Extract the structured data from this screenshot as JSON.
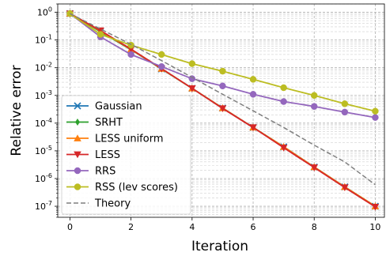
{
  "chart_data": {
    "type": "line",
    "xlabel": "Iteration",
    "ylabel": "Relative error",
    "xlim": [
      -0.4,
      10.3
    ],
    "ylim": [
      4e-08,
      2
    ],
    "yscale": "log",
    "grid": true,
    "legend_position": "bottom-left",
    "x_ticks": [
      0,
      2,
      4,
      6,
      8,
      10
    ],
    "y_ticks": [
      {
        "exp": 0,
        "label": "10",
        "sup": "0"
      },
      {
        "exp": -1,
        "label": "10",
        "sup": "-1"
      },
      {
        "exp": -2,
        "label": "10",
        "sup": "-2"
      },
      {
        "exp": -3,
        "label": "10",
        "sup": "-3"
      },
      {
        "exp": -4,
        "label": "10",
        "sup": "-4"
      },
      {
        "exp": -5,
        "label": "10",
        "sup": "-5"
      },
      {
        "exp": -6,
        "label": "10",
        "sup": "-6"
      },
      {
        "exp": -7,
        "label": "10",
        "sup": "-7"
      }
    ],
    "x": [
      0,
      1,
      2,
      3,
      4,
      5,
      6,
      7,
      8,
      9,
      10
    ],
    "series": [
      {
        "name": "Gaussian",
        "color": "#1f77b4",
        "marker": "x",
        "dashed": false,
        "values": [
          0.9,
          0.2,
          0.045,
          0.009,
          0.0018,
          0.00035,
          7e-05,
          1.4e-05,
          2.6e-06,
          5e-07,
          1e-07
        ]
      },
      {
        "name": "SRHT",
        "color": "#2ca02c",
        "marker": "diamond",
        "dashed": false,
        "values": [
          0.9,
          0.2,
          0.045,
          0.009,
          0.0018,
          0.00035,
          7e-05,
          1.4e-05,
          2.6e-06,
          5e-07,
          1e-07
        ]
      },
      {
        "name": "LESS uniform",
        "color": "#ff7f0e",
        "marker": "triangle-up",
        "dashed": false,
        "values": [
          0.9,
          0.21,
          0.046,
          0.0092,
          0.0018,
          0.00035,
          7e-05,
          1.4e-05,
          2.6e-06,
          5e-07,
          1e-07
        ]
      },
      {
        "name": "LESS",
        "color": "#d62728",
        "marker": "triangle-down",
        "dashed": false,
        "values": [
          0.9,
          0.22,
          0.047,
          0.0093,
          0.0018,
          0.00034,
          7e-05,
          1.3e-05,
          2.5e-06,
          4.8e-07,
          9.5e-08
        ]
      },
      {
        "name": "RRS",
        "color": "#9467bd",
        "marker": "circle",
        "dashed": false,
        "values": [
          0.9,
          0.13,
          0.03,
          0.011,
          0.004,
          0.0022,
          0.0011,
          0.0006,
          0.0004,
          0.00025,
          0.00016
        ]
      },
      {
        "name": "RSS (lev scores)",
        "color": "#bcbd22",
        "marker": "circle",
        "dashed": false,
        "values": [
          0.9,
          0.16,
          0.065,
          0.03,
          0.014,
          0.0075,
          0.0038,
          0.0019,
          0.001,
          0.0005,
          0.00027
        ]
      },
      {
        "name": "Theory",
        "color": "#7f7f7f",
        "marker": "none",
        "dashed": true,
        "values": [
          0.9,
          0.25,
          0.07,
          0.018,
          0.0045,
          0.0011,
          0.00028,
          7e-05,
          1.6e-05,
          4e-06,
          6e-07
        ]
      }
    ]
  }
}
